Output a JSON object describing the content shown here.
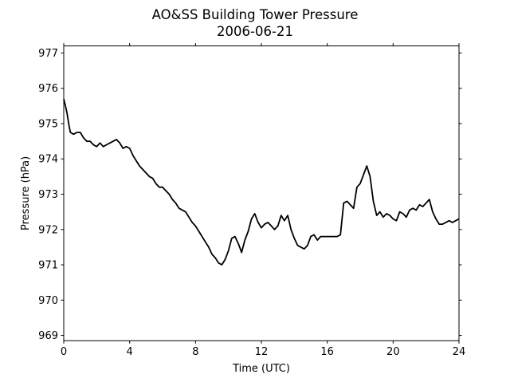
{
  "chart_data": {
    "type": "line",
    "title": "AO&SS Building Tower Pressure",
    "subtitle": "2006-06-21",
    "xlabel": "Time (UTC)",
    "ylabel": "Pressure (hPa)",
    "xlim": [
      0,
      24
    ],
    "ylim": [
      968.85,
      977.2
    ],
    "xticks": [
      0,
      4,
      8,
      12,
      16,
      20,
      24
    ],
    "yticks": [
      969,
      970,
      971,
      972,
      973,
      974,
      975,
      976,
      977
    ],
    "grid": false,
    "legend": false,
    "series": [
      {
        "color": "#000000",
        "x": [
          0,
          0.1,
          0.2,
          0.3,
          0.4,
          0.6,
          0.8,
          1.0,
          1.2,
          1.4,
          1.6,
          1.8,
          2.0,
          2.2,
          2.4,
          2.6,
          2.8,
          3.0,
          3.2,
          3.4,
          3.6,
          3.8,
          4.0,
          4.2,
          4.4,
          4.6,
          4.8,
          5.0,
          5.2,
          5.4,
          5.6,
          5.8,
          6.0,
          6.2,
          6.4,
          6.6,
          6.8,
          7.0,
          7.2,
          7.4,
          7.6,
          7.8,
          8.0,
          8.2,
          8.4,
          8.6,
          8.8,
          9.0,
          9.2,
          9.4,
          9.6,
          9.8,
          10.0,
          10.2,
          10.4,
          10.6,
          10.8,
          11.0,
          11.2,
          11.4,
          11.6,
          11.8,
          12.0,
          12.2,
          12.4,
          12.6,
          12.8,
          13.0,
          13.2,
          13.4,
          13.6,
          13.8,
          14.0,
          14.2,
          14.4,
          14.6,
          14.8,
          15.0,
          15.2,
          15.4,
          15.6,
          15.8,
          16.0,
          16.2,
          16.4,
          16.6,
          16.8,
          17.0,
          17.2,
          17.4,
          17.6,
          17.8,
          18.0,
          18.2,
          18.4,
          18.6,
          18.8,
          19.0,
          19.2,
          19.4,
          19.6,
          19.8,
          20.0,
          20.2,
          20.4,
          20.6,
          20.8,
          21.0,
          21.2,
          21.4,
          21.6,
          21.8,
          22.0,
          22.2,
          22.4,
          22.6,
          22.8,
          23.0,
          23.2,
          23.4,
          23.6,
          23.8,
          24.0
        ],
        "y": [
          975.7,
          975.5,
          975.3,
          975.0,
          974.75,
          974.7,
          974.75,
          974.75,
          974.6,
          974.5,
          974.5,
          974.4,
          974.35,
          974.45,
          974.35,
          974.4,
          974.45,
          974.5,
          974.55,
          974.45,
          974.3,
          974.35,
          974.3,
          974.1,
          973.95,
          973.8,
          973.7,
          973.6,
          973.5,
          973.45,
          973.3,
          973.2,
          973.2,
          973.1,
          973.0,
          972.85,
          972.75,
          972.6,
          972.55,
          972.5,
          972.35,
          972.2,
          972.1,
          971.95,
          971.8,
          971.65,
          971.5,
          971.3,
          971.2,
          971.05,
          971.0,
          971.15,
          971.4,
          971.75,
          971.8,
          971.6,
          971.35,
          971.7,
          971.95,
          972.3,
          972.45,
          972.2,
          972.05,
          972.15,
          972.2,
          972.1,
          972.0,
          972.1,
          972.4,
          972.25,
          972.4,
          972.0,
          971.75,
          971.55,
          971.5,
          971.45,
          971.55,
          971.8,
          971.85,
          971.7,
          971.8,
          971.8,
          971.8,
          971.8,
          971.8,
          971.8,
          971.85,
          972.75,
          972.8,
          972.7,
          972.6,
          973.2,
          973.3,
          973.55,
          973.8,
          973.5,
          972.8,
          972.4,
          972.5,
          972.35,
          972.45,
          972.4,
          972.3,
          972.25,
          972.5,
          972.45,
          972.35,
          972.55,
          972.6,
          972.55,
          972.7,
          972.65,
          972.75,
          972.85,
          972.5,
          972.3,
          972.15,
          972.15,
          972.2,
          972.25,
          972.2,
          972.25,
          972.3
        ]
      }
    ]
  }
}
